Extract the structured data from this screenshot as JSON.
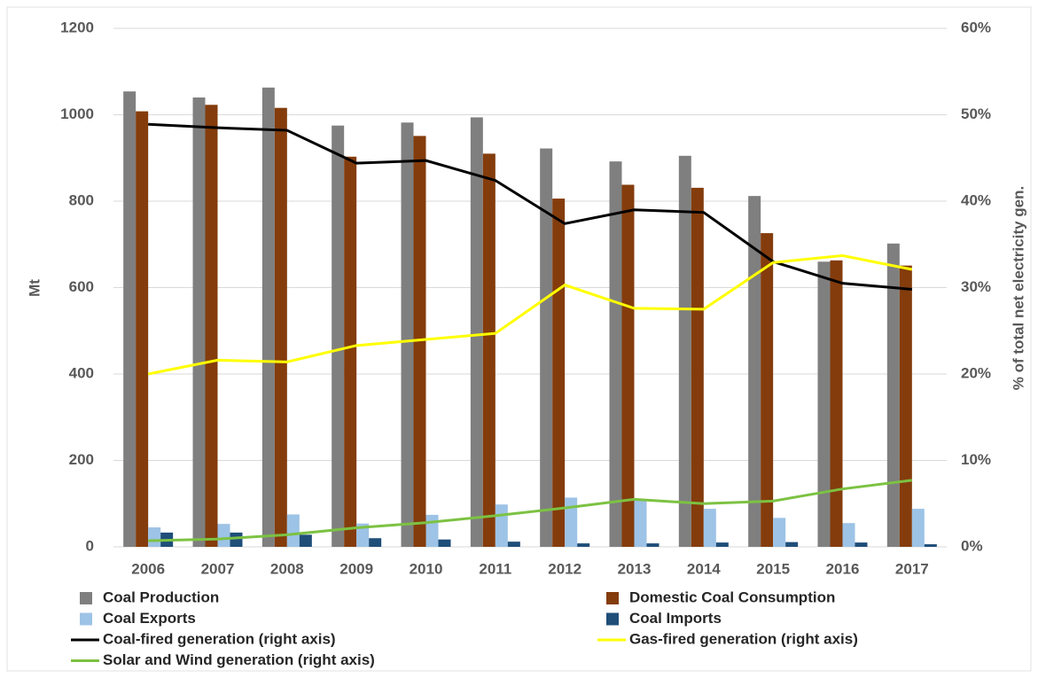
{
  "chart_data": {
    "type": "bar",
    "categories": [
      "2006",
      "2007",
      "2008",
      "2009",
      "2010",
      "2011",
      "2012",
      "2013",
      "2014",
      "2015",
      "2016",
      "2017"
    ],
    "y_label": "Mt",
    "y2_label": "% of total net electricity gen.",
    "ylim": [
      0,
      1200
    ],
    "yticks": [
      0,
      200,
      400,
      600,
      800,
      1000,
      1200
    ],
    "y2lim": [
      0,
      60
    ],
    "y2ticks": [
      {
        "value": 0,
        "label": "0%"
      },
      {
        "value": 10,
        "label": "10%"
      },
      {
        "value": 20,
        "label": "20%"
      },
      {
        "value": 30,
        "label": "30%"
      },
      {
        "value": 40,
        "label": "40%"
      },
      {
        "value": 50,
        "label": "50%"
      },
      {
        "value": 60,
        "label": "60%"
      }
    ],
    "grid": true,
    "series": [
      {
        "name": "Coal Production",
        "type": "bar",
        "color": "#7f7f7f",
        "values": [
          1054,
          1040,
          1063,
          975,
          982,
          994,
          922,
          892,
          905,
          812,
          660,
          702
        ]
      },
      {
        "name": "Domestic Coal Consumption",
        "type": "bar",
        "color": "#843c0c",
        "values": [
          1008,
          1023,
          1016,
          903,
          951,
          910,
          806,
          838,
          831,
          726,
          663,
          651
        ]
      },
      {
        "name": "Coal Exports",
        "type": "bar",
        "color": "#9dc3e6",
        "values": [
          45,
          53,
          75,
          54,
          74,
          98,
          114,
          107,
          88,
          67,
          55,
          88
        ]
      },
      {
        "name": "Coal Imports",
        "type": "bar",
        "color": "#1f4e79",
        "values": [
          33,
          33,
          28,
          20,
          17,
          12,
          8,
          8,
          10,
          11,
          10,
          6
        ]
      },
      {
        "name": "Coal-fired generation (right axis)",
        "type": "line",
        "axis": "y2",
        "color": "#000000",
        "values": [
          48.9,
          48.5,
          48.2,
          44.4,
          44.7,
          42.4,
          37.4,
          39.0,
          38.7,
          33.0,
          30.5,
          29.8
        ]
      },
      {
        "name": "Gas-fired generation  (right axis)",
        "type": "line",
        "axis": "y2",
        "color": "#ffff00",
        "values": [
          20.0,
          21.6,
          21.4,
          23.3,
          24.0,
          24.7,
          30.3,
          27.6,
          27.5,
          32.9,
          33.7,
          32.1
        ]
      },
      {
        "name": "Solar and Wind generation (right axis)",
        "type": "line",
        "axis": "y2",
        "color": "#7cc242",
        "values": [
          0.7,
          0.9,
          1.4,
          2.2,
          2.8,
          3.6,
          4.5,
          5.5,
          5.0,
          5.3,
          6.7,
          7.7
        ]
      }
    ]
  }
}
